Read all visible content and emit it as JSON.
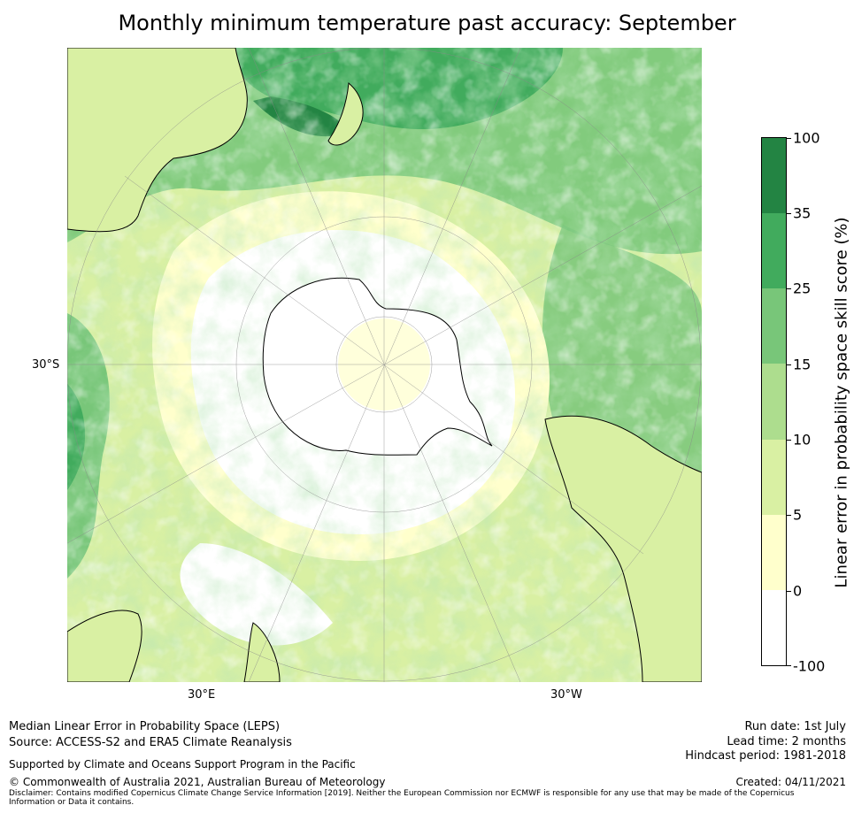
{
  "title": "Monthly minimum temperature past accuracy: September",
  "map": {
    "projection": "south-polar stereographic",
    "tick_labels": {
      "left": "30°S",
      "bottom_left": "30°E",
      "bottom_right": "30°W"
    },
    "colors": {
      "land_outline": "#000000",
      "graticule": "#888888"
    }
  },
  "colorbar": {
    "label": "Linear error in probability space skill score (%)",
    "ticks": [
      "100",
      "35",
      "25",
      "15",
      "10",
      "5",
      "0",
      "-100"
    ],
    "bins": [
      {
        "from": -100,
        "to": 0,
        "color": "#ffffff"
      },
      {
        "from": 0,
        "to": 5,
        "color": "#ffffcc"
      },
      {
        "from": 5,
        "to": 10,
        "color": "#d9f0a3"
      },
      {
        "from": 10,
        "to": 15,
        "color": "#addd8e"
      },
      {
        "from": 15,
        "to": 25,
        "color": "#78c679"
      },
      {
        "from": 25,
        "to": 35,
        "color": "#41ab5d"
      },
      {
        "from": 35,
        "to": 100,
        "color": "#238443"
      }
    ]
  },
  "footer": {
    "line1": "Median Linear Error in Probability Space (LEPS)",
    "line2": "Source: ACCESS-S2 and ERA5 Climate Reanalysis",
    "supported": "Supported by Climate and Oceans Support Program in the Pacific",
    "copyright": "© Commonwealth of Australia 2021, Australian Bureau of Meteorology",
    "disclaimer": "Disclaimer: Contains modified Copernicus Climate Change Service Information [2019]. Neither the European Commission nor ECMWF is responsible for any use that may be made of the Copernicus Information or Data it contains.",
    "run_date": "Run date: 1st July",
    "lead_time": "Lead time: 2 months",
    "hindcast": "Hindcast period: 1981-2018",
    "created": "Created: 04/11/2021"
  }
}
